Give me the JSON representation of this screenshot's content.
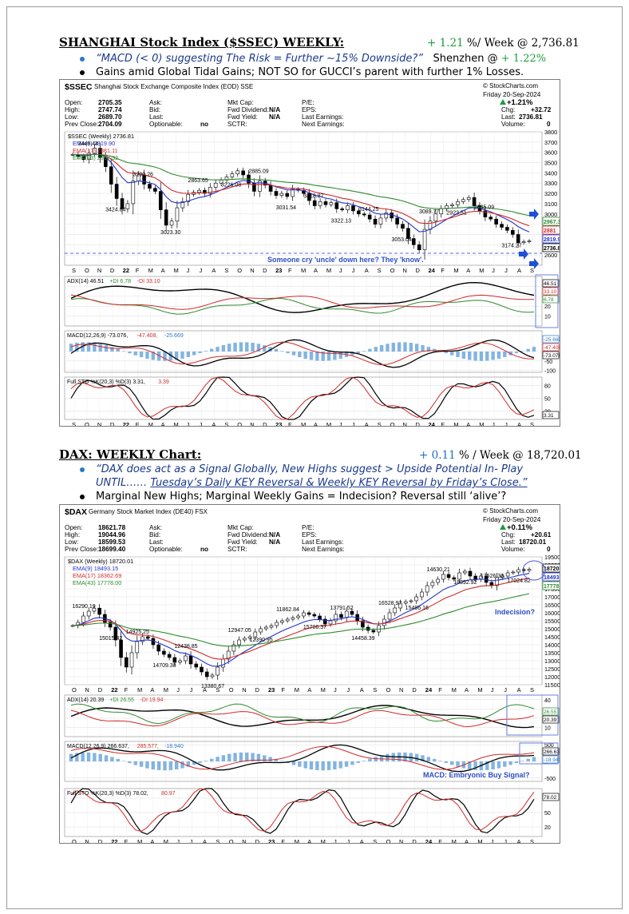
{
  "shanghai": {
    "header": "SHANGHAI Stock Index ($SSEC) WEEKLY:",
    "change_pct": "+ 1.21",
    "change_suffix": "%/ Week @ 2,736.81",
    "bullet1_quote": "“MACD (< 0) suggesting The Risk = Further ~15% Downside?”",
    "bullet1_tail_label": "Shenzhen @",
    "bullet1_tail_value": "+ 1.22%",
    "bullet2": "Gains amid Global Tidal Gains; NOT SO for GUCCI’s parent with further 1% Losses.",
    "chart_title_symbol": "$SSEC",
    "chart_title_name": "Shanghai Stock Exchange Composite Index (EOD) SSE",
    "watermark": "© StockCharts.com",
    "date": "Friday  20-Sep-2024",
    "quote_change": "+1.21%",
    "info": {
      "open": "2705.35",
      "high": "2747.74",
      "low": "2689.70",
      "prev_close": "2704.09",
      "chg": "+32.72",
      "last": "2736.81",
      "volume": "0"
    },
    "legend_main": "$SSEC (Weekly) 2736.81",
    "legend_ema9": "EMA(9) 2819.90",
    "legend_ema17": "EMA(17) 2881.11",
    "legend_ema43": "EMA(43) 2967.32",
    "annotation": "Someone cry 'uncle' down here? They 'know'.",
    "adx_legend_a": "ADX(14) 46.51",
    "adx_legend_b": "+DI 6.78",
    "adx_legend_c": "-DI 33.10",
    "macd_legend_a": "MACD(12,26,9) -73.076,",
    "macd_legend_b": "-47.408,",
    "macd_legend_c": "-25.669",
    "sto_legend_a": "Full STO %K(20,3) %D(3) 3.31,",
    "sto_legend_b": "3.39",
    "tags": {
      "adx1": "46.51",
      "adx2": "33.10",
      "adx3": "6.78",
      "macd1": "-25.669",
      "macd2": "-47.408",
      "macd3": "-73.076",
      "sto": "3.31",
      "p1": "2967.32",
      "p2": "2881",
      "p3": "2819.90",
      "p4": "2736.81"
    },
    "peak_labels": [
      "3446.44",
      "3424.84",
      "3290.26",
      "3023.30",
      "2863.65",
      "3226.08",
      "2885.09",
      "3031.54",
      "3418.87",
      "3322.13",
      "3144.25",
      "3053.04",
      "3089.77",
      "2923.51",
      "2635.09",
      "3174.27"
    ]
  },
  "dax": {
    "header": "DAX: WEEKLY Chart:",
    "change_pct": "+ 0.11",
    "change_suffix": "% / Week @ 18,720.01",
    "bullet1_line1": "“DAX does act as a Signal Globally, New Highs suggest > Upside Potential In- Play",
    "bullet1_line2_a": "UNTIL…… ",
    "bullet1_line2_b": "Tuesday’s Daily KEY Reversal & Weekly KEY Reversal by Friday’s Close.”",
    "bullet2": "Marginal New Highs; Marginal Weekly Gains = Indecision? Reversal still ‘alive’?",
    "chart_title_symbol": "$DAX",
    "chart_title_name": "Germany Stock Market Index (DE40) FSX",
    "watermark": "© StockCharts.com",
    "date": "Friday  20-Sep-2024",
    "quote_change": "+0.11%",
    "info": {
      "open": "18621.78",
      "high": "19044.96",
      "low": "18599.53",
      "prev_close": "18699.40",
      "chg": "+20.61",
      "last": "18720.01",
      "volume": "0"
    },
    "legend_main": "$DAX (Weekly) 18720.01",
    "legend_ema9": "EMA(9) 18493.15",
    "legend_ema17": "EMA(17) 18362.69",
    "legend_ema43": "EMA(43) 17778.00",
    "annotation_indecision": "Indecision?",
    "annotation_macd": "MACD: Embryonic Buy Signal?",
    "adx_legend_a": "ADX(14) 20.39",
    "adx_legend_b": "+DI 26.55",
    "adx_legend_c": "-DI 19.94",
    "macd_legend_a": "MACD(12,26,9) 266.637,",
    "macd_legend_b": "285.577,",
    "macd_legend_c": "-18.940",
    "sto_legend_a": "Full STO %K(20,3) %D(3) 78.02,",
    "sto_legend_b": "80.97",
    "tags": {
      "adx1": "26.55",
      "adx2": "20.39",
      "macd1": "266.637",
      "macd2": "-18.940",
      "sto": "78.02",
      "p1": "18720.01",
      "p2": "18493.15",
      "p3": "17778.00"
    },
    "peak_labels": [
      "16290.19",
      "15015.42",
      "14925.25",
      "14709.38",
      "12438.85",
      "13380.67",
      "12947.05",
      "12390.95",
      "11862.84",
      "15706.37",
      "13791.52",
      "14458.39",
      "16528.97",
      "15486.16",
      "14630.21",
      "18892.92",
      "17526.30",
      "17024.82"
    ]
  },
  "labels": {
    "open": "Open:",
    "high": "High:",
    "low": "Low:",
    "prev_close": "Prev Close:",
    "ask": "Ask:",
    "bid": "Bid:",
    "last": "Last:",
    "optionable": "Optionable:",
    "optionable_val": "no",
    "mkt_cap": "Mkt Cap:",
    "fwd_div": "Fwd Dividend:",
    "fwd_yield": "Fwd Yield:",
    "sctr": "SCTR:",
    "na": "N/A",
    "pe": "P/E:",
    "eps": "EPS:",
    "last_earn": "Last Earnings:",
    "next_earn": "Next Earnings:",
    "chg": "Chg:",
    "last_r": "Last:",
    "volume": "Volume:"
  },
  "chart_data": [
    {
      "type": "line",
      "title": "Shanghai Stock Exchange Composite Index (EOD) SSE",
      "x_labels": [
        "S",
        "O",
        "N",
        "D",
        "22",
        "F",
        "M",
        "A",
        "M",
        "J",
        "J",
        "A",
        "S",
        "O",
        "N",
        "D",
        "23",
        "F",
        "M",
        "A",
        "M",
        "J",
        "J",
        "A",
        "S",
        "O",
        "N",
        "D",
        "24",
        "F",
        "M",
        "A",
        "M",
        "J",
        "J",
        "A",
        "S"
      ],
      "ylim": [
        2500,
        3800
      ],
      "y_ticks": [
        2600,
        2700,
        2800,
        2900,
        3000,
        3100,
        3200,
        3300,
        3400,
        3500,
        3600,
        3700,
        3800
      ],
      "series": [
        {
          "name": "$SSEC (Weekly) 2736.81",
          "values": [
            3580,
            3560,
            3530,
            3590,
            3640,
            3550,
            3460,
            3290,
            3150,
            3050,
            3100,
            3320,
            3380,
            3290,
            3250,
            3220,
            3040,
            2890,
            2930,
            3060,
            3120,
            3190,
            3210,
            3230,
            3200,
            3260,
            3300,
            3330,
            3360,
            3390,
            3420,
            3380,
            3300,
            3220,
            3320,
            3280,
            3220,
            3180,
            3200,
            3170,
            3240,
            3230,
            3200,
            3130,
            3080,
            3120,
            3090,
            3110,
            3050,
            3040,
            3080,
            3030,
            3000,
            2990,
            2950,
            2900,
            2960,
            3010,
            2960,
            2900,
            2860,
            2760,
            2700,
            2650,
            2850,
            2930,
            3000,
            3050,
            3080,
            3090,
            3120,
            3140,
            3160,
            3080,
            3030,
            2970,
            2950,
            2900,
            2870,
            2840,
            2800,
            2720,
            2730,
            2736.81
          ]
        },
        {
          "name": "EMA(9) 2819.90",
          "values": []
        },
        {
          "name": "EMA(17) 2881.11",
          "values": []
        },
        {
          "name": "EMA(43) 2967.32",
          "values": []
        }
      ]
    },
    {
      "type": "line",
      "title": "Germany Stock Market Index (DE40) FSX",
      "x_labels": [
        "O",
        "N",
        "D",
        "22",
        "F",
        "M",
        "A",
        "M",
        "J",
        "J",
        "A",
        "S",
        "O",
        "N",
        "D",
        "23",
        "F",
        "M",
        "A",
        "M",
        "J",
        "J",
        "A",
        "S",
        "O",
        "N",
        "D",
        "24",
        "F",
        "M",
        "A",
        "M",
        "J",
        "J",
        "A",
        "S"
      ],
      "ylim": [
        11500,
        19500
      ],
      "y_ticks": [
        11500,
        12000,
        12500,
        13000,
        13500,
        14000,
        14500,
        15000,
        15500,
        16000,
        16500,
        17000,
        17500,
        18000,
        18500,
        19000,
        19500
      ],
      "series": [
        {
          "name": "$DAX (Weekly) 18720.01",
          "values": [
            15200,
            15400,
            15800,
            16100,
            16290,
            15900,
            15400,
            15100,
            14300,
            13200,
            12600,
            13500,
            14200,
            14500,
            14400,
            14000,
            13600,
            13400,
            13200,
            12900,
            13000,
            13300,
            12800,
            12600,
            12300,
            12000,
            12100,
            12600,
            13100,
            13600,
            14000,
            14300,
            14400,
            14500,
            14800,
            15000,
            15100,
            15200,
            15400,
            15500,
            15600,
            15700,
            15800,
            16000,
            15900,
            15800,
            15600,
            15300,
            15500,
            15900,
            15700,
            16100,
            15900,
            15500,
            15100,
            14900,
            14800,
            15200,
            15600,
            16000,
            16300,
            16600,
            16700,
            16750,
            17000,
            17300,
            17700,
            17900,
            18100,
            18400,
            18200,
            18100,
            18500,
            18600,
            18300,
            18100,
            18300,
            17900,
            17700,
            18200,
            18300,
            18500,
            18550,
            18700,
            18650,
            18720.01
          ]
        }
      ]
    }
  ]
}
